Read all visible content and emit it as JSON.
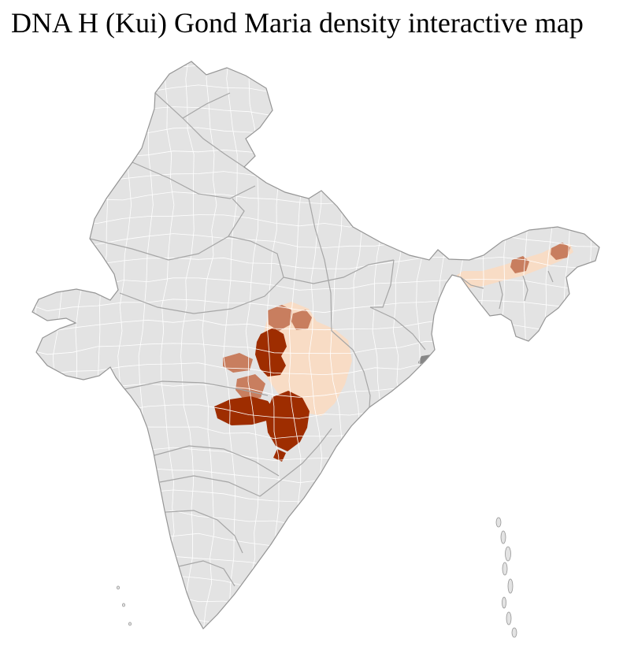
{
  "title": "DNA H (Kui) Gond Maria density interactive map",
  "map": {
    "colors": {
      "background": "#ffffff",
      "land": "#e3e3e3",
      "district_border": "#ffffff",
      "state_border": "#a6a6a6",
      "outline": "#959595",
      "density_high": "#9e2d00",
      "density_medium": "#c87e5f",
      "density_low": "#f8dcc5",
      "neutral_dark": "#878787"
    }
  }
}
